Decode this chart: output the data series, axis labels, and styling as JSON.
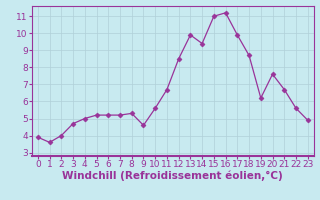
{
  "x": [
    0,
    1,
    2,
    3,
    4,
    5,
    6,
    7,
    8,
    9,
    10,
    11,
    12,
    13,
    14,
    15,
    16,
    17,
    18,
    19,
    20,
    21,
    22,
    23
  ],
  "y": [
    3.9,
    3.6,
    4.0,
    4.7,
    5.0,
    5.2,
    5.2,
    5.2,
    5.3,
    4.6,
    5.6,
    6.7,
    8.5,
    9.9,
    9.4,
    11.0,
    11.2,
    9.9,
    8.7,
    6.2,
    7.6,
    6.7,
    5.6,
    4.9
  ],
  "line_color": "#993399",
  "marker": "D",
  "marker_size": 2.5,
  "bg_color": "#c8eaf0",
  "grid_color": "#b0d0d8",
  "xlabel": "Windchill (Refroidissement éolien,°C)",
  "xlim": [
    -0.5,
    23.5
  ],
  "ylim": [
    2.8,
    11.6
  ],
  "yticks": [
    3,
    4,
    5,
    6,
    7,
    8,
    9,
    10,
    11
  ],
  "xticks": [
    0,
    1,
    2,
    3,
    4,
    5,
    6,
    7,
    8,
    9,
    10,
    11,
    12,
    13,
    14,
    15,
    16,
    17,
    18,
    19,
    20,
    21,
    22,
    23
  ],
  "tick_label_fontsize": 6.5,
  "xlabel_fontsize": 7.5,
  "axis_color": "#993399",
  "spine_color": "#993399",
  "linewidth": 0.9
}
